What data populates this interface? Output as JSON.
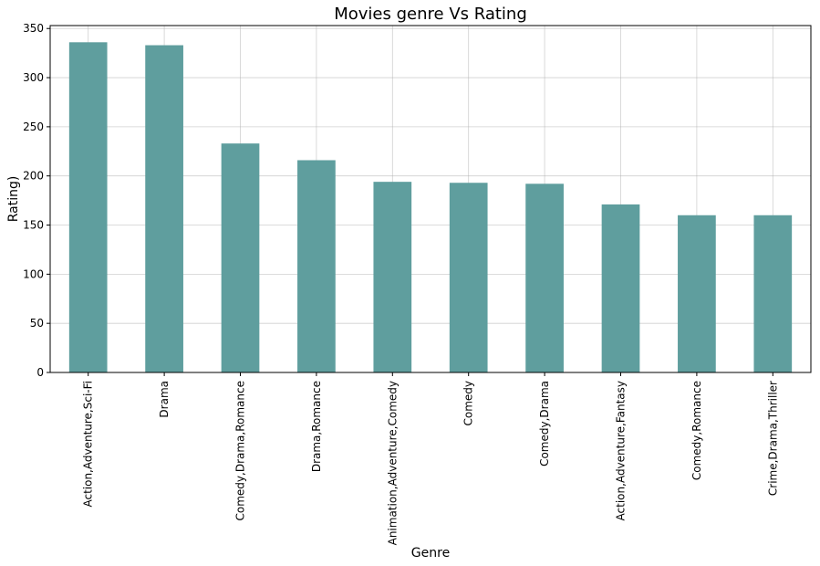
{
  "chart_data": {
    "type": "bar",
    "title": "Movies genre Vs Rating",
    "xlabel": "Genre",
    "ylabel": "Rating)",
    "categories": [
      "Action,Adventure,Sci-Fi",
      "Drama",
      "Comedy,Drama,Romance",
      "Drama,Romance",
      "Animation,Adventure,Comedy",
      "Comedy",
      "Comedy,Drama",
      "Action,Adventure,Fantasy",
      "Comedy,Romance",
      "Crime,Drama,Thriller"
    ],
    "values": [
      336,
      333,
      233,
      216,
      194,
      193,
      192,
      171,
      160,
      160
    ],
    "ylim": [
      0,
      353
    ],
    "yticks": [
      0,
      50,
      100,
      150,
      200,
      250,
      300,
      350
    ],
    "bar_color": "#5f9e9e",
    "grid": true,
    "legend": "none"
  }
}
